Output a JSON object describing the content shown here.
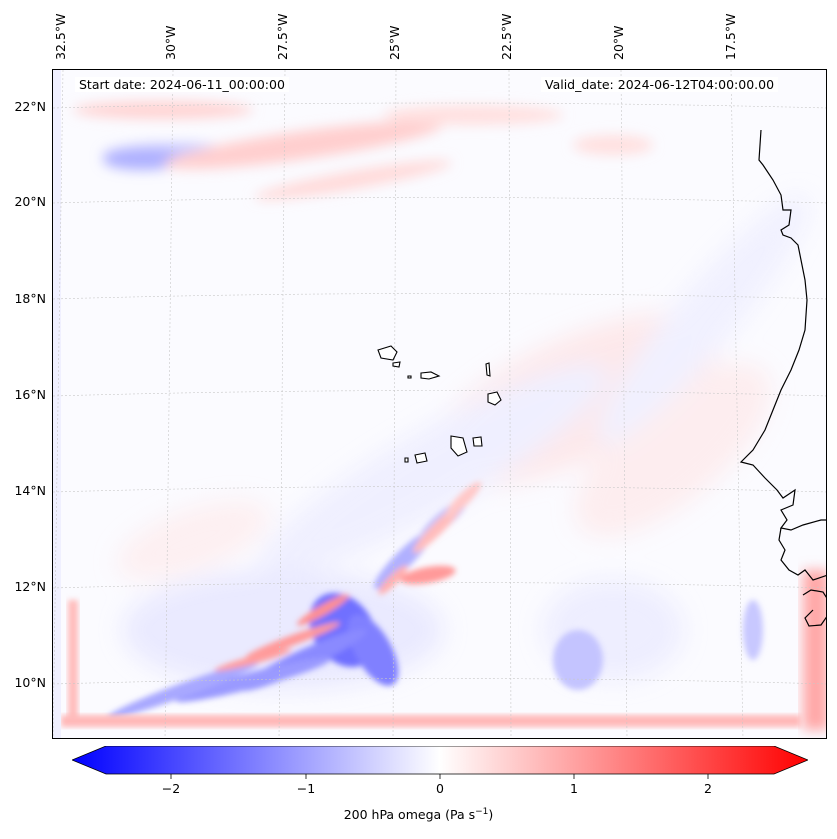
{
  "map": {
    "start_date": "Start date: 2024-06-11_00:00:00",
    "valid_date": "Valid_date: 2024-06-12T04:00:00.00",
    "lon_labels": [
      "32.5°W",
      "30°W",
      "27.5°W",
      "25°W",
      "22.5°W",
      "20°W",
      "17.5°W"
    ],
    "lat_labels": [
      "22°N",
      "20°N",
      "18°N",
      "16°N",
      "14°N",
      "12°N",
      "10°N"
    ],
    "gridlines": true,
    "colors": {
      "negative": "#0000ff",
      "neutral": "#ffffff",
      "positive": "#ff0000",
      "coast": "#000000"
    }
  },
  "colorbar": {
    "ticks": [
      "−2",
      "−1",
      "0",
      "1",
      "2"
    ],
    "label_main": "200 hPa omega (Pa s",
    "label_sup": "−1",
    "label_end": ")",
    "range": [
      -2.6,
      2.6
    ],
    "extend": "both",
    "colormap": "bwr"
  }
}
